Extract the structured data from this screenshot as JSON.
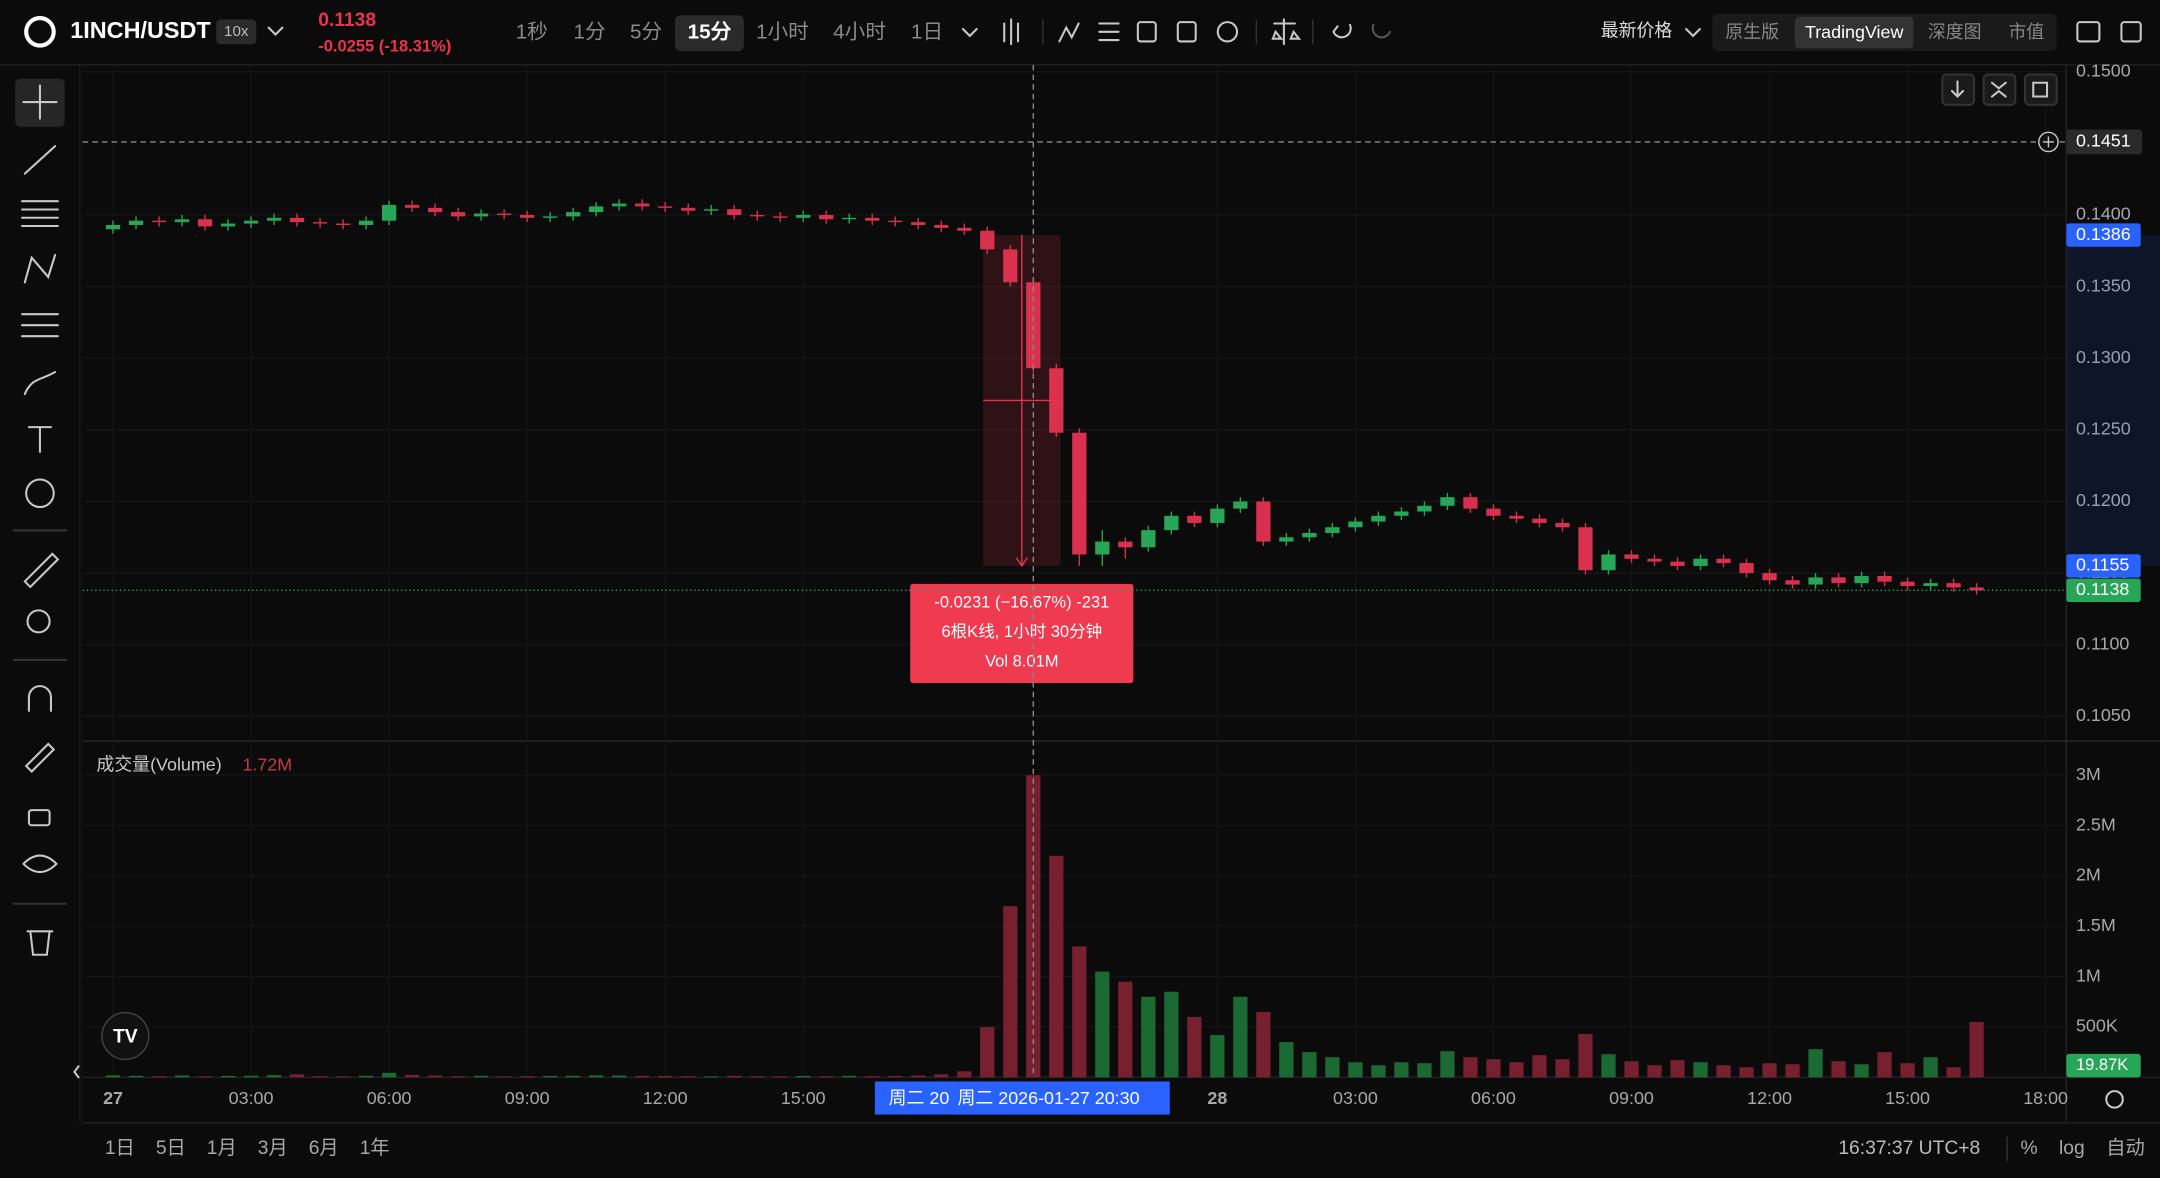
{
  "header": {
    "symbol": "1INCH/USDT",
    "leverage": "10x",
    "price": 0.1138,
    "change": "-0.0255 (-18.31%)",
    "intervals": [
      "1秒",
      "1分",
      "5分",
      "15分",
      "1小时",
      "4小时",
      "1日"
    ],
    "active_interval": 3,
    "price_source": "最新价格",
    "views": [
      "原生版",
      "TradingView",
      "深度图",
      "市值"
    ],
    "active_view": 1
  },
  "chart_data": {
    "type": "candlestick",
    "x": [
      0,
      0.5,
      1,
      1.5,
      2,
      2.5,
      3,
      3.5,
      4,
      4.5,
      5,
      5.5,
      6,
      6.5,
      7,
      7.5,
      8,
      8.5,
      9,
      9.5,
      10,
      10.5,
      11,
      11.5,
      12,
      12.5,
      13,
      13.5,
      14,
      14.5,
      15,
      15.5,
      16,
      16.5,
      17,
      17.5,
      18,
      18.5,
      19,
      19.5,
      20,
      20.5,
      21,
      21.5,
      22,
      22.5,
      23,
      23.5,
      24,
      24.5,
      25,
      25.5,
      26,
      26.5,
      27,
      27.5,
      28,
      28.5,
      29,
      29.5,
      30,
      30.5,
      31,
      31.5,
      32,
      32.5,
      33,
      33.5,
      34,
      34.5,
      35,
      35.5,
      36,
      36.5,
      37,
      37.5,
      38,
      38.5,
      39,
      39.5,
      40,
      40.5
    ],
    "open": [
      0.139,
      0.1393,
      0.1396,
      0.1395,
      0.1397,
      0.1392,
      0.1394,
      0.1396,
      0.1398,
      0.1395,
      0.1394,
      0.1393,
      0.1396,
      0.1407,
      0.1405,
      0.1402,
      0.1399,
      0.1401,
      0.14,
      0.1398,
      0.1399,
      0.1402,
      0.1406,
      0.1408,
      0.1406,
      0.1405,
      0.1403,
      0.1404,
      0.14,
      0.1399,
      0.1398,
      0.14,
      0.1397,
      0.1398,
      0.1396,
      0.1395,
      0.1393,
      0.1391,
      0.1389,
      0.1376,
      0.1353,
      0.1293,
      0.1248,
      0.1163,
      0.1172,
      0.1168,
      0.118,
      0.119,
      0.1185,
      0.1195,
      0.12,
      0.1172,
      0.1175,
      0.1178,
      0.1182,
      0.1186,
      0.119,
      0.1193,
      0.1197,
      0.1203,
      0.1195,
      0.119,
      0.1188,
      0.1185,
      0.1182,
      0.1152,
      0.1163,
      0.116,
      0.1158,
      0.1155,
      0.116,
      0.1157,
      0.115,
      0.1145,
      0.1142,
      0.1147,
      0.1143,
      0.1148,
      0.1144,
      0.1141,
      0.1143,
      0.114
    ],
    "high": [
      0.1396,
      0.1399,
      0.1399,
      0.14,
      0.14,
      0.1397,
      0.1399,
      0.1401,
      0.1401,
      0.1398,
      0.1397,
      0.1399,
      0.141,
      0.141,
      0.1408,
      0.1405,
      0.1404,
      0.1404,
      0.1403,
      0.1402,
      0.1405,
      0.1409,
      0.1411,
      0.1411,
      0.1409,
      0.1408,
      0.1407,
      0.1407,
      0.1403,
      0.1402,
      0.1403,
      0.1403,
      0.1401,
      0.1401,
      0.1399,
      0.1398,
      0.1396,
      0.1394,
      0.1392,
      0.1379,
      0.1356,
      0.1296,
      0.1251,
      0.118,
      0.1175,
      0.1183,
      0.1193,
      0.1193,
      0.1198,
      0.1203,
      0.1203,
      0.1178,
      0.1181,
      0.1185,
      0.1189,
      0.1193,
      0.1196,
      0.12,
      0.1206,
      0.1206,
      0.1198,
      0.1193,
      0.1191,
      0.1188,
      0.1185,
      0.1166,
      0.1166,
      0.1163,
      0.1161,
      0.1163,
      0.1163,
      0.116,
      0.1153,
      0.1148,
      0.115,
      0.115,
      0.1151,
      0.1151,
      0.1147,
      0.1146,
      0.1146,
      0.1143
    ],
    "low": [
      0.1387,
      0.139,
      0.1392,
      0.1392,
      0.1389,
      0.1389,
      0.1391,
      0.1393,
      0.1392,
      0.1391,
      0.139,
      0.139,
      0.1393,
      0.1402,
      0.1399,
      0.1396,
      0.1396,
      0.1397,
      0.1395,
      0.1395,
      0.1396,
      0.1399,
      0.1403,
      0.1403,
      0.1402,
      0.14,
      0.14,
      0.1397,
      0.1396,
      0.1395,
      0.1395,
      0.1394,
      0.1394,
      0.1393,
      0.1392,
      0.139,
      0.1388,
      0.1386,
      0.1373,
      0.135,
      0.129,
      0.1245,
      0.1155,
      0.1155,
      0.116,
      0.1165,
      0.1177,
      0.1182,
      0.1182,
      0.1192,
      0.1169,
      0.1169,
      0.1172,
      0.1175,
      0.1179,
      0.1183,
      0.1187,
      0.119,
      0.1194,
      0.1192,
      0.1187,
      0.1185,
      0.1182,
      0.1179,
      0.1149,
      0.1149,
      0.1157,
      0.1155,
      0.1152,
      0.1152,
      0.1154,
      0.1147,
      0.1142,
      0.1139,
      0.1139,
      0.114,
      0.114,
      0.1141,
      0.1138,
      0.1138,
      0.1137,
      0.1135
    ],
    "close": [
      0.1393,
      0.1396,
      0.1395,
      0.1397,
      0.1392,
      0.1394,
      0.1396,
      0.1398,
      0.1395,
      0.1394,
      0.1393,
      0.1396,
      0.1407,
      0.1405,
      0.1402,
      0.1399,
      0.1401,
      0.14,
      0.1398,
      0.1399,
      0.1402,
      0.1406,
      0.1408,
      0.1406,
      0.1405,
      0.1403,
      0.1404,
      0.14,
      0.1399,
      0.1398,
      0.14,
      0.1397,
      0.1398,
      0.1396,
      0.1395,
      0.1393,
      0.1391,
      0.1389,
      0.1376,
      0.1353,
      0.1293,
      0.1248,
      0.1163,
      0.1172,
      0.1168,
      0.118,
      0.119,
      0.1185,
      0.1195,
      0.12,
      0.1172,
      0.1175,
      0.1178,
      0.1182,
      0.1186,
      0.119,
      0.1193,
      0.1197,
      0.1203,
      0.1195,
      0.119,
      0.1188,
      0.1185,
      0.1182,
      0.1152,
      0.1163,
      0.116,
      0.1158,
      0.1155,
      0.116,
      0.1157,
      0.115,
      0.1145,
      0.1142,
      0.1147,
      0.1143,
      0.1148,
      0.1144,
      0.1141,
      0.1143,
      0.114,
      0.1138
    ],
    "volume": [
      20000,
      15000,
      12000,
      18000,
      10000,
      14000,
      16000,
      22000,
      30000,
      12000,
      10000,
      15000,
      45000,
      25000,
      18000,
      12000,
      15000,
      10000,
      12000,
      14000,
      16000,
      20000,
      18000,
      15000,
      14000,
      12000,
      10000,
      15000,
      12000,
      10000,
      14000,
      12000,
      15000,
      12000,
      14000,
      18000,
      30000,
      60000,
      500000,
      1700000,
      3000000,
      2200000,
      1300000,
      1050000,
      950000,
      800000,
      850000,
      600000,
      420000,
      800000,
      650000,
      350000,
      250000,
      200000,
      150000,
      120000,
      150000,
      140000,
      260000,
      200000,
      180000,
      150000,
      220000,
      180000,
      430000,
      230000,
      160000,
      120000,
      170000,
      150000,
      120000,
      100000,
      140000,
      130000,
      280000,
      160000,
      130000,
      250000,
      140000,
      200000,
      100000,
      550000
    ],
    "colors": {
      "up": "#27a658",
      "down": "#d8304e",
      "volume_up": "#1c6a33",
      "volume_down": "#77202f"
    },
    "xlim": [
      -0.66,
      42.45
    ],
    "xticks": [
      {
        "value": 0,
        "label": "27"
      },
      {
        "value": 3,
        "label": "03:00"
      },
      {
        "value": 6,
        "label": "06:00"
      },
      {
        "value": 9,
        "label": "09:00"
      },
      {
        "value": 12,
        "label": "12:00"
      },
      {
        "value": 15,
        "label": "15:00"
      },
      {
        "value": 24,
        "label": "28"
      },
      {
        "value": 27,
        "label": "03:00"
      },
      {
        "value": 30,
        "label": "06:00"
      },
      {
        "value": 33,
        "label": "09:00"
      },
      {
        "value": 36,
        "label": "12:00"
      },
      {
        "value": 39,
        "label": "15:00"
      },
      {
        "value": 42,
        "label": "18:00"
      }
    ],
    "ylim": [
      0.10336,
      0.15048
    ],
    "yticks": [
      {
        "value": 0.105,
        "label": "0.1050"
      },
      {
        "value": 0.11,
        "label": "0.1100"
      },
      {
        "value": 0.115,
        "label": "0.1150"
      },
      {
        "value": 0.12,
        "label": "0.1200"
      },
      {
        "value": 0.125,
        "label": "0.1250"
      },
      {
        "value": 0.13,
        "label": "0.1300"
      },
      {
        "value": 0.135,
        "label": "0.1350"
      },
      {
        "value": 0.14,
        "label": "0.1400"
      },
      {
        "value": 0.15,
        "label": "0.1500"
      }
    ],
    "volume_title": "成交量(Volume)",
    "volume_value": {
      "value": 1720000,
      "label": "1.72M"
    },
    "volume_ylim": [
      0,
      3310000
    ],
    "volume_yticks": [
      {
        "value": 500000,
        "label": "500K"
      },
      {
        "value": 1000000,
        "label": "1M"
      },
      {
        "value": 1500000,
        "label": "1.5M"
      },
      {
        "value": 2000000,
        "label": "2M"
      },
      {
        "value": 2500000,
        "label": "2.5M"
      },
      {
        "value": 3000000,
        "label": "3M"
      }
    ],
    "current_volume": {
      "value": 19870,
      "label": "19.87K"
    },
    "last_price": 0.1138,
    "crosshair": {
      "x": 20,
      "price": 0.1451,
      "x_label": "周二 2026-01-27   20:30",
      "x_label_behind": "周二 20"
    },
    "measurement": {
      "from_x": 19,
      "to_x": 20.5,
      "from_price": 0.1386,
      "to_price": 0.1155,
      "lines": [
        "-0.0231 (−16.67%) -231",
        "6根K线, 1小时 30分钟",
        "Vol 8.01M"
      ]
    }
  },
  "footer": {
    "ranges": [
      "1日",
      "5日",
      "1月",
      "3月",
      "6月",
      "1年"
    ],
    "clock": "16:37:37 UTC+8",
    "scale_options": [
      "%",
      "log",
      "自动"
    ]
  }
}
